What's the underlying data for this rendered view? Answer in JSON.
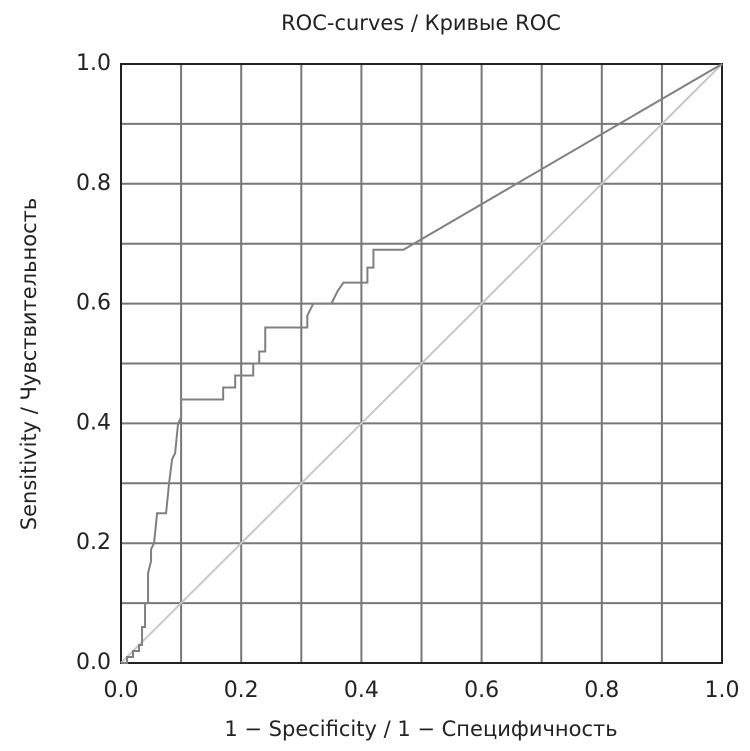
{
  "chart_data": {
    "type": "line",
    "title": "ROC-curves / Кривые ROC",
    "x_label": "1 − Specificity / 1 − Специфичность",
    "y_label": "Sensitivity / Чувствительность",
    "xlim": [
      0,
      1
    ],
    "ylim": [
      0,
      1
    ],
    "xticks": [
      {
        "value": 0,
        "label": "0.0"
      },
      0.2,
      0.4,
      0.6,
      0.8,
      {
        "value": 1,
        "label": "1.0"
      }
    ],
    "yticks": [
      {
        "value": 0,
        "label": "0.0"
      },
      0.2,
      0.4,
      0.6,
      0.8,
      {
        "value": 1,
        "label": "1.0"
      }
    ],
    "grid": true,
    "series": [
      {
        "color": "#808080",
        "x": [
          0,
          0.01,
          0.01,
          0.02,
          0.02,
          0.03,
          0.03,
          0.035,
          0.035,
          0.04,
          0.04,
          0.045,
          0.045,
          0.05,
          0.05,
          0.055,
          0.06,
          0.075,
          0.08,
          0.085,
          0.09,
          0.095,
          0.1,
          0.1,
          0.17,
          0.17,
          0.19,
          0.19,
          0.22,
          0.22,
          0.23,
          0.23,
          0.24,
          0.24,
          0.31,
          0.31,
          0.32,
          0.35,
          0.36,
          0.37,
          0.41,
          0.41,
          0.42,
          0.42,
          0.47,
          1
        ],
        "values": [
          0,
          0,
          0.01,
          0.01,
          0.02,
          0.02,
          0.03,
          0.03,
          0.06,
          0.06,
          0.1,
          0.1,
          0.15,
          0.17,
          0.19,
          0.2,
          0.25,
          0.25,
          0.3,
          0.34,
          0.35,
          0.4,
          0.41,
          0.44,
          0.44,
          0.46,
          0.46,
          0.48,
          0.48,
          0.5,
          0.5,
          0.52,
          0.52,
          0.56,
          0.56,
          0.58,
          0.6,
          0.6,
          0.62,
          0.635,
          0.635,
          0.66,
          0.66,
          0.69,
          0.69,
          1
        ]
      },
      {
        "color": "#c8c8c8",
        "x": [
          0,
          1
        ],
        "values": [
          0,
          1
        ]
      }
    ]
  }
}
